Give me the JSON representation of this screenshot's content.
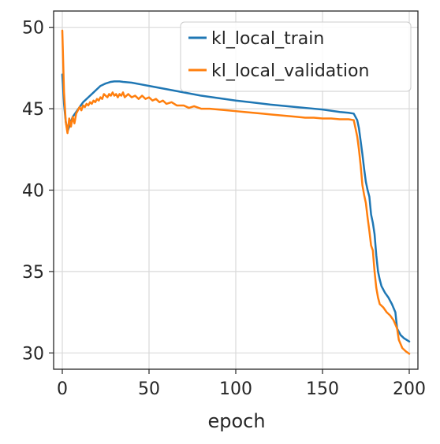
{
  "chart_data": {
    "type": "line",
    "title": "",
    "xlabel": "epoch",
    "ylabel": "",
    "xlim": [
      -5,
      205
    ],
    "ylim": [
      29,
      51
    ],
    "xticks": [
      0,
      50,
      100,
      150,
      200
    ],
    "yticks": [
      30,
      35,
      40,
      45,
      50
    ],
    "grid": true,
    "legend_position": "top-right",
    "series": [
      {
        "name": "kl_local_train",
        "color": "#1f77b4",
        "points": [
          [
            0,
            47.1
          ],
          [
            1,
            45.3
          ],
          [
            2,
            44.2
          ],
          [
            3,
            43.6
          ],
          [
            4,
            43.9
          ],
          [
            5,
            44.2
          ],
          [
            6,
            44.5
          ],
          [
            8,
            44.8
          ],
          [
            10,
            45.1
          ],
          [
            12,
            45.4
          ],
          [
            15,
            45.7
          ],
          [
            18,
            46.0
          ],
          [
            20,
            46.2
          ],
          [
            22,
            46.4
          ],
          [
            25,
            46.55
          ],
          [
            28,
            46.65
          ],
          [
            30,
            46.68
          ],
          [
            33,
            46.68
          ],
          [
            35,
            46.65
          ],
          [
            40,
            46.6
          ],
          [
            45,
            46.5
          ],
          [
            50,
            46.4
          ],
          [
            60,
            46.2
          ],
          [
            70,
            46.0
          ],
          [
            80,
            45.8
          ],
          [
            90,
            45.65
          ],
          [
            100,
            45.5
          ],
          [
            110,
            45.38
          ],
          [
            120,
            45.25
          ],
          [
            130,
            45.15
          ],
          [
            140,
            45.05
          ],
          [
            150,
            44.95
          ],
          [
            160,
            44.8
          ],
          [
            165,
            44.75
          ],
          [
            168,
            44.7
          ],
          [
            170,
            44.3
          ],
          [
            171,
            43.8
          ],
          [
            172,
            43.0
          ],
          [
            173,
            42.2
          ],
          [
            174,
            41.3
          ],
          [
            175,
            40.5
          ],
          [
            176,
            40.0
          ],
          [
            177,
            39.6
          ],
          [
            178,
            38.5
          ],
          [
            179,
            38.0
          ],
          [
            180,
            37.3
          ],
          [
            181,
            36.0
          ],
          [
            182,
            35.0
          ],
          [
            183,
            34.5
          ],
          [
            184,
            34.1
          ],
          [
            186,
            33.7
          ],
          [
            188,
            33.4
          ],
          [
            190,
            33.0
          ],
          [
            192,
            32.5
          ],
          [
            193,
            31.5
          ],
          [
            195,
            31.1
          ],
          [
            197,
            30.9
          ],
          [
            200,
            30.7
          ]
        ]
      },
      {
        "name": "kl_local_validation",
        "color": "#ff7f0e",
        "points": [
          [
            0,
            49.8
          ],
          [
            1,
            46.0
          ],
          [
            2,
            44.2
          ],
          [
            3,
            43.5
          ],
          [
            4,
            44.4
          ],
          [
            5,
            43.9
          ],
          [
            6,
            44.5
          ],
          [
            7,
            44.1
          ],
          [
            8,
            44.7
          ],
          [
            9,
            44.9
          ],
          [
            10,
            45.1
          ],
          [
            11,
            44.9
          ],
          [
            12,
            45.2
          ],
          [
            13,
            45.1
          ],
          [
            14,
            45.3
          ],
          [
            15,
            45.2
          ],
          [
            16,
            45.4
          ],
          [
            17,
            45.3
          ],
          [
            18,
            45.5
          ],
          [
            19,
            45.4
          ],
          [
            20,
            45.6
          ],
          [
            21,
            45.5
          ],
          [
            22,
            45.7
          ],
          [
            23,
            45.6
          ],
          [
            24,
            45.9
          ],
          [
            25,
            45.8
          ],
          [
            26,
            45.7
          ],
          [
            27,
            45.9
          ],
          [
            28,
            45.8
          ],
          [
            29,
            46.0
          ],
          [
            30,
            45.8
          ],
          [
            31,
            45.9
          ],
          [
            32,
            45.7
          ],
          [
            33,
            45.9
          ],
          [
            34,
            45.8
          ],
          [
            35,
            46.0
          ],
          [
            36,
            45.7
          ],
          [
            38,
            45.9
          ],
          [
            40,
            45.7
          ],
          [
            42,
            45.8
          ],
          [
            44,
            45.6
          ],
          [
            46,
            45.8
          ],
          [
            48,
            45.6
          ],
          [
            50,
            45.7
          ],
          [
            52,
            45.5
          ],
          [
            54,
            45.6
          ],
          [
            56,
            45.4
          ],
          [
            58,
            45.5
          ],
          [
            60,
            45.3
          ],
          [
            63,
            45.4
          ],
          [
            66,
            45.2
          ],
          [
            70,
            45.2
          ],
          [
            73,
            45.05
          ],
          [
            76,
            45.15
          ],
          [
            80,
            45.0
          ],
          [
            85,
            45.0
          ],
          [
            90,
            44.95
          ],
          [
            95,
            44.9
          ],
          [
            100,
            44.85
          ],
          [
            105,
            44.8
          ],
          [
            110,
            44.75
          ],
          [
            115,
            44.7
          ],
          [
            120,
            44.65
          ],
          [
            125,
            44.6
          ],
          [
            130,
            44.55
          ],
          [
            135,
            44.5
          ],
          [
            140,
            44.45
          ],
          [
            145,
            44.45
          ],
          [
            150,
            44.4
          ],
          [
            155,
            44.4
          ],
          [
            160,
            44.35
          ],
          [
            165,
            44.35
          ],
          [
            168,
            44.3
          ],
          [
            169,
            43.8
          ],
          [
            170,
            43.3
          ],
          [
            171,
            42.5
          ],
          [
            172,
            41.5
          ],
          [
            173,
            40.3
          ],
          [
            174,
            39.7
          ],
          [
            175,
            39.2
          ],
          [
            176,
            38.3
          ],
          [
            177,
            37.5
          ],
          [
            178,
            36.6
          ],
          [
            179,
            36.3
          ],
          [
            180,
            35.0
          ],
          [
            181,
            34.0
          ],
          [
            182,
            33.4
          ],
          [
            183,
            33.0
          ],
          [
            185,
            32.8
          ],
          [
            187,
            32.5
          ],
          [
            189,
            32.3
          ],
          [
            191,
            32.0
          ],
          [
            193,
            31.5
          ],
          [
            194,
            30.8
          ],
          [
            196,
            30.3
          ],
          [
            198,
            30.1
          ],
          [
            200,
            29.95
          ]
        ]
      }
    ]
  }
}
